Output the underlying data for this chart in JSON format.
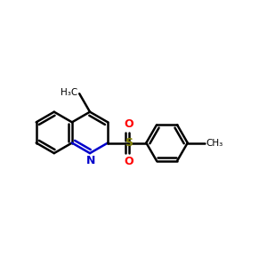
{
  "bg_color": "#ffffff",
  "bond_color": "#000000",
  "nitrogen_color": "#0000cc",
  "sulfur_color": "#808000",
  "oxygen_color": "#ff0000",
  "line_width": 1.8,
  "dbo": 0.018,
  "figsize": [
    3.0,
    3.0
  ],
  "dpi": 100,
  "xlim": [
    -0.65,
    0.72
  ],
  "ylim": [
    -0.5,
    0.5
  ]
}
